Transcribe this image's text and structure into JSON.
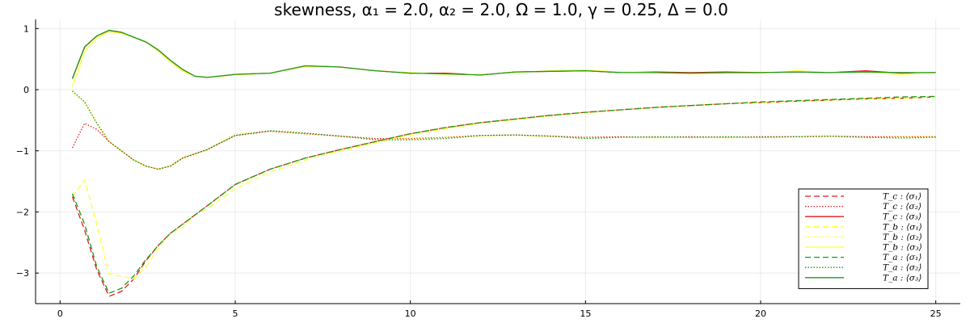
{
  "chart_data": {
    "type": "line",
    "title": "skewness, α₁ = 2.0, α₂ = 2.0, Ω = 1.0, γ = 0.25, Δ = 0.0",
    "xlabel": "",
    "ylabel": "",
    "xlim": [
      -0.7,
      25.7
    ],
    "ylim": [
      -3.5,
      1.15
    ],
    "xticks": [
      0,
      5,
      10,
      15,
      20,
      25
    ],
    "yticks": [
      -3,
      -2,
      -1,
      0,
      1
    ],
    "grid": true,
    "legend_position": "bottom-right",
    "x": [
      0.35,
      0.7,
      1.05,
      1.4,
      1.75,
      2.1,
      2.45,
      2.8,
      3.15,
      3.5,
      3.85,
      4.2,
      5,
      6,
      7,
      8,
      9,
      10,
      11,
      12,
      13,
      14,
      15,
      16,
      17,
      18,
      19,
      20,
      21,
      22,
      23,
      24,
      25
    ],
    "series": [
      {
        "name": "T_c : ⟨σ₁⟩",
        "color": "#e31a1c",
        "dash": "dashed",
        "values": [
          -1.75,
          -2.3,
          -2.95,
          -3.38,
          -3.3,
          -3.1,
          -2.8,
          -2.55,
          -2.35,
          -2.2,
          -2.05,
          -1.9,
          -1.55,
          -1.3,
          -1.12,
          -0.98,
          -0.85,
          -0.72,
          -0.62,
          -0.54,
          -0.48,
          -0.42,
          -0.37,
          -0.33,
          -0.29,
          -0.26,
          -0.23,
          -0.21,
          -0.19,
          -0.17,
          -0.15,
          -0.14,
          -0.12
        ]
      },
      {
        "name": "T_c : ⟨σ₂⟩",
        "color": "#e31a1c",
        "dash": "dotted",
        "values": [
          -0.95,
          -0.55,
          -0.65,
          -0.85,
          -1.0,
          -1.15,
          -1.25,
          -1.3,
          -1.25,
          -1.12,
          -1.05,
          -0.98,
          -0.75,
          -0.68,
          -0.72,
          -0.76,
          -0.8,
          -0.8,
          -0.78,
          -0.75,
          -0.74,
          -0.76,
          -0.78,
          -0.77,
          -0.78,
          -0.77,
          -0.78,
          -0.77,
          -0.77,
          -0.76,
          -0.77,
          -0.77,
          -0.77
        ]
      },
      {
        "name": "T_c : ⟨σ₃⟩",
        "color": "#e31a1c",
        "dash": "solid",
        "values": [
          0.18,
          0.7,
          0.88,
          0.97,
          0.93,
          0.86,
          0.78,
          0.65,
          0.48,
          0.33,
          0.22,
          0.2,
          0.25,
          0.27,
          0.39,
          0.37,
          0.31,
          0.27,
          0.27,
          0.24,
          0.29,
          0.3,
          0.31,
          0.28,
          0.29,
          0.28,
          0.29,
          0.28,
          0.29,
          0.28,
          0.31,
          0.27,
          0.28
        ]
      },
      {
        "name": "T_b : ⟨σ₁⟩",
        "color": "#ffff33",
        "dash": "dashed",
        "values": [
          -1.75,
          -1.48,
          -2.2,
          -3.02,
          -3.05,
          -3.1,
          -2.9,
          -2.6,
          -2.35,
          -2.25,
          -2.05,
          -1.95,
          -1.62,
          -1.35,
          -1.15,
          -1.0,
          -0.87,
          -0.74,
          -0.64,
          -0.55,
          -0.49,
          -0.43,
          -0.38,
          -0.33,
          -0.29,
          -0.26,
          -0.23,
          -0.21,
          -0.19,
          -0.17,
          -0.15,
          -0.14,
          -0.12
        ]
      },
      {
        "name": "T_b : ⟨σ₂⟩",
        "color": "#ffff33",
        "dash": "dotted",
        "values": [
          -0.05,
          -0.2,
          -0.55,
          -0.85,
          -1.0,
          -1.15,
          -1.25,
          -1.3,
          -1.25,
          -1.1,
          -1.05,
          -0.98,
          -0.72,
          -0.68,
          -0.72,
          -0.76,
          -0.82,
          -0.8,
          -0.78,
          -0.76,
          -0.75,
          -0.77,
          -0.79,
          -0.78,
          -0.79,
          -0.78,
          -0.79,
          -0.78,
          -0.78,
          -0.77,
          -0.79,
          -0.77,
          -0.76
        ]
      },
      {
        "name": "T_b : ⟨σ₃⟩",
        "color": "#ffff33",
        "dash": "solid",
        "values": [
          0.05,
          0.62,
          0.85,
          0.95,
          0.92,
          0.86,
          0.78,
          0.63,
          0.46,
          0.3,
          0.22,
          0.2,
          0.24,
          0.27,
          0.38,
          0.37,
          0.31,
          0.28,
          0.25,
          0.25,
          0.28,
          0.31,
          0.32,
          0.29,
          0.28,
          0.26,
          0.27,
          0.27,
          0.31,
          0.28,
          0.29,
          0.25,
          0.28
        ]
      },
      {
        "name": "T_a : ⟨σ₁⟩",
        "color": "#1a9a1a",
        "dash": "dashed",
        "values": [
          -1.7,
          -2.2,
          -2.9,
          -3.33,
          -3.25,
          -3.05,
          -2.78,
          -2.55,
          -2.35,
          -2.2,
          -2.05,
          -1.9,
          -1.55,
          -1.3,
          -1.12,
          -0.98,
          -0.85,
          -0.72,
          -0.62,
          -0.54,
          -0.48,
          -0.42,
          -0.37,
          -0.33,
          -0.29,
          -0.26,
          -0.23,
          -0.2,
          -0.18,
          -0.16,
          -0.14,
          -0.12,
          -0.11
        ]
      },
      {
        "name": "T_a : ⟨σ₂⟩",
        "color": "#1a9a1a",
        "dash": "dotted",
        "values": [
          -0.02,
          -0.2,
          -0.55,
          -0.85,
          -1.0,
          -1.15,
          -1.25,
          -1.3,
          -1.25,
          -1.12,
          -1.05,
          -0.98,
          -0.75,
          -0.67,
          -0.71,
          -0.76,
          -0.82,
          -0.82,
          -0.8,
          -0.75,
          -0.74,
          -0.76,
          -0.8,
          -0.78,
          -0.77,
          -0.78,
          -0.77,
          -0.78,
          -0.77,
          -0.76,
          -0.78,
          -0.79,
          -0.78
        ]
      },
      {
        "name": "T_a : ⟨σ₃⟩",
        "color": "#1a9a1a",
        "dash": "solid",
        "values": [
          0.18,
          0.7,
          0.88,
          0.97,
          0.94,
          0.86,
          0.78,
          0.65,
          0.48,
          0.33,
          0.22,
          0.2,
          0.25,
          0.27,
          0.39,
          0.37,
          0.31,
          0.27,
          0.26,
          0.24,
          0.29,
          0.3,
          0.31,
          0.28,
          0.28,
          0.27,
          0.28,
          0.28,
          0.29,
          0.28,
          0.29,
          0.28,
          0.28
        ]
      }
    ]
  }
}
